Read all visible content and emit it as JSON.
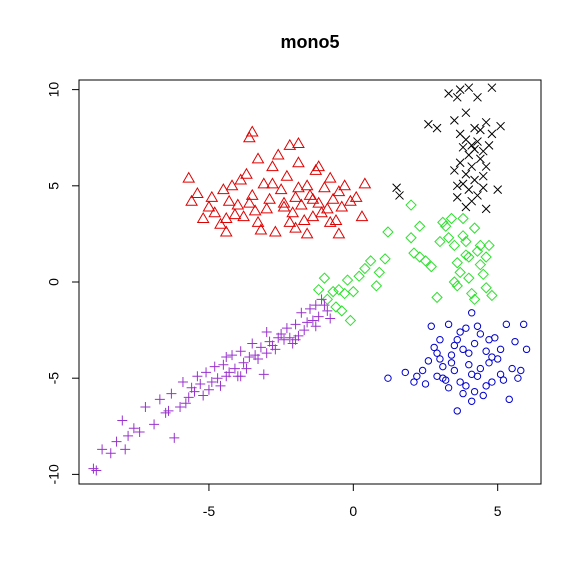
{
  "chart_data": {
    "type": "scatter",
    "title": "mono5",
    "xlabel": "",
    "ylabel": "",
    "xlim": [
      -9.5,
      6.5
    ],
    "ylim": [
      -10.5,
      10.5
    ],
    "xticks": [
      -5,
      0,
      5
    ],
    "xtick_labels": [
      "-5",
      "0",
      "5"
    ],
    "yticks": [
      -10,
      -5,
      0,
      5,
      10
    ],
    "ytick_labels": [
      "-10",
      "-5",
      "0",
      "5",
      "10"
    ],
    "grid": false,
    "legend": false,
    "series": [
      {
        "marker": "triangle",
        "color": "#DF0000",
        "points": [
          [
            -5.7,
            5.4
          ],
          [
            -5.6,
            4.2
          ],
          [
            -5.4,
            4.6
          ],
          [
            -5.0,
            3.9
          ],
          [
            -4.9,
            4.4
          ],
          [
            -4.8,
            3.6
          ],
          [
            -4.6,
            3.0
          ],
          [
            -4.5,
            4.8
          ],
          [
            -4.3,
            4.2
          ],
          [
            -4.2,
            5.0
          ],
          [
            -4.0,
            4.0
          ],
          [
            -3.8,
            3.4
          ],
          [
            -3.7,
            5.6
          ],
          [
            -3.6,
            4.1
          ],
          [
            -3.5,
            4.5
          ],
          [
            -3.3,
            3.1
          ],
          [
            -3.3,
            6.4
          ],
          [
            -3.1,
            5.1
          ],
          [
            -3.0,
            3.8
          ],
          [
            -2.9,
            4.3
          ],
          [
            -2.8,
            6.0
          ],
          [
            -2.7,
            2.6
          ],
          [
            -2.5,
            4.8
          ],
          [
            -2.4,
            3.9
          ],
          [
            -2.3,
            5.5
          ],
          [
            -2.2,
            7.1
          ],
          [
            -2.1,
            3.6
          ],
          [
            -2.0,
            4.4
          ],
          [
            -1.9,
            6.2
          ],
          [
            -1.8,
            4.0
          ],
          [
            -1.7,
            3.2
          ],
          [
            -1.6,
            5.0
          ],
          [
            -1.5,
            4.5
          ],
          [
            -1.4,
            3.4
          ],
          [
            -1.3,
            5.8
          ],
          [
            -1.2,
            4.1
          ],
          [
            -1.1,
            3.6
          ],
          [
            -1.0,
            4.9
          ],
          [
            -0.9,
            3.8
          ],
          [
            -0.8,
            5.4
          ],
          [
            -0.7,
            4.3
          ],
          [
            -0.6,
            3.2
          ],
          [
            -0.5,
            4.7
          ],
          [
            -0.4,
            3.9
          ],
          [
            -0.3,
            5.0
          ],
          [
            -0.1,
            4.2
          ],
          [
            0.1,
            4.4
          ],
          [
            0.3,
            3.4
          ],
          [
            0.4,
            5.1
          ],
          [
            -5.2,
            3.3
          ],
          [
            -4.4,
            2.6
          ],
          [
            -3.9,
            5.3
          ],
          [
            -3.4,
            3.7
          ],
          [
            -2.6,
            6.6
          ],
          [
            -2.0,
            2.8
          ],
          [
            -1.6,
            2.5
          ],
          [
            -1.2,
            6.0
          ],
          [
            -0.8,
            3.1
          ],
          [
            -4.1,
            3.5
          ],
          [
            -3.2,
            2.7
          ],
          [
            -2.4,
            4.1
          ],
          [
            -1.9,
            4.9
          ],
          [
            -1.4,
            4.3
          ],
          [
            -3.6,
            7.5
          ],
          [
            -3.5,
            7.8
          ],
          [
            -1.9,
            7.2
          ],
          [
            -4.4,
            3.3
          ],
          [
            -2.8,
            5.1
          ],
          [
            -2.2,
            3.1
          ],
          [
            -0.5,
            2.5
          ]
        ]
      },
      {
        "marker": "cross",
        "color": "#000000",
        "points": [
          [
            3.3,
            9.8
          ],
          [
            3.7,
            10.0
          ],
          [
            4.0,
            10.1
          ],
          [
            4.3,
            9.6
          ],
          [
            4.8,
            10.1
          ],
          [
            3.6,
            9.6
          ],
          [
            2.6,
            8.2
          ],
          [
            2.9,
            8.0
          ],
          [
            3.5,
            8.4
          ],
          [
            3.9,
            8.8
          ],
          [
            4.2,
            8.0
          ],
          [
            4.6,
            8.3
          ],
          [
            5.1,
            8.1
          ],
          [
            3.7,
            7.7
          ],
          [
            3.9,
            7.4
          ],
          [
            4.1,
            7.1
          ],
          [
            4.3,
            7.3
          ],
          [
            4.5,
            6.8
          ],
          [
            3.8,
            7.0
          ],
          [
            4.0,
            6.6
          ],
          [
            4.4,
            6.4
          ],
          [
            4.1,
            6.0
          ],
          [
            3.7,
            6.2
          ],
          [
            4.6,
            6.0
          ],
          [
            3.5,
            5.8
          ],
          [
            3.9,
            5.6
          ],
          [
            4.2,
            5.3
          ],
          [
            4.5,
            5.5
          ],
          [
            3.8,
            5.1
          ],
          [
            4.0,
            4.8
          ],
          [
            4.3,
            4.5
          ],
          [
            3.6,
            4.4
          ],
          [
            4.1,
            4.2
          ],
          [
            4.5,
            4.9
          ],
          [
            3.9,
            3.9
          ],
          [
            1.5,
            4.9
          ],
          [
            1.6,
            4.5
          ],
          [
            4.6,
            3.8
          ],
          [
            5.0,
            4.8
          ],
          [
            4.8,
            7.7
          ],
          [
            4.4,
            7.9
          ],
          [
            3.6,
            5.0
          ],
          [
            4.2,
            6.9
          ],
          [
            4.7,
            7.1
          ]
        ]
      },
      {
        "marker": "diamond",
        "color": "#30E030",
        "points": [
          [
            -1.2,
            -0.4
          ],
          [
            -1.0,
            0.2
          ],
          [
            -0.9,
            -0.9
          ],
          [
            -0.7,
            -0.5
          ],
          [
            -0.6,
            -1.3
          ],
          [
            -0.5,
            -0.4
          ],
          [
            -0.3,
            -0.6
          ],
          [
            -0.2,
            0.1
          ],
          [
            -0.1,
            -2.0
          ],
          [
            0.0,
            -0.5
          ],
          [
            0.2,
            0.3
          ],
          [
            0.4,
            0.7
          ],
          [
            0.6,
            1.1
          ],
          [
            0.8,
            -0.2
          ],
          [
            0.9,
            0.5
          ],
          [
            1.1,
            1.2
          ],
          [
            1.2,
            2.6
          ],
          [
            2.0,
            2.3
          ],
          [
            2.1,
            1.5
          ],
          [
            2.3,
            1.3
          ],
          [
            2.5,
            1.1
          ],
          [
            2.7,
            0.8
          ],
          [
            2.9,
            -0.8
          ],
          [
            3.0,
            2.1
          ],
          [
            3.2,
            2.9
          ],
          [
            3.4,
            3.3
          ],
          [
            3.5,
            1.9
          ],
          [
            3.6,
            1.0
          ],
          [
            3.7,
            0.5
          ],
          [
            3.8,
            2.4
          ],
          [
            3.9,
            1.4
          ],
          [
            4.0,
            0.2
          ],
          [
            4.1,
            -0.6
          ],
          [
            4.2,
            2.8
          ],
          [
            4.3,
            1.6
          ],
          [
            4.4,
            0.9
          ],
          [
            4.5,
            0.4
          ],
          [
            4.6,
            -0.3
          ],
          [
            4.7,
            1.9
          ],
          [
            4.8,
            -0.7
          ],
          [
            3.3,
            2.3
          ],
          [
            3.6,
            -0.2
          ],
          [
            4.0,
            1.3
          ],
          [
            4.4,
            1.9
          ],
          [
            3.1,
            3.1
          ],
          [
            2.0,
            4.0
          ],
          [
            2.3,
            2.9
          ],
          [
            3.9,
            2.1
          ],
          [
            4.2,
            -0.9
          ],
          [
            3.5,
            0.0
          ],
          [
            4.6,
            1.3
          ],
          [
            3.8,
            3.3
          ],
          [
            -0.4,
            -1.5
          ]
        ]
      },
      {
        "marker": "circle",
        "color": "#0000CC",
        "points": [
          [
            1.2,
            -5.0
          ],
          [
            1.8,
            -4.7
          ],
          [
            2.1,
            -5.2
          ],
          [
            2.4,
            -4.6
          ],
          [
            2.5,
            -5.3
          ],
          [
            2.6,
            -4.1
          ],
          [
            2.8,
            -3.4
          ],
          [
            2.9,
            -4.9
          ],
          [
            3.0,
            -3.0
          ],
          [
            3.1,
            -4.4
          ],
          [
            3.2,
            -5.1
          ],
          [
            3.3,
            -2.2
          ],
          [
            3.4,
            -3.8
          ],
          [
            3.5,
            -4.6
          ],
          [
            3.6,
            -6.7
          ],
          [
            3.7,
            -2.6
          ],
          [
            3.8,
            -3.5
          ],
          [
            3.9,
            -5.4
          ],
          [
            4.0,
            -4.3
          ],
          [
            4.1,
            -1.6
          ],
          [
            4.1,
            -6.2
          ],
          [
            4.2,
            -3.2
          ],
          [
            4.3,
            -4.9
          ],
          [
            4.4,
            -2.7
          ],
          [
            4.5,
            -5.9
          ],
          [
            4.6,
            -3.6
          ],
          [
            4.7,
            -4.2
          ],
          [
            4.8,
            -5.2
          ],
          [
            4.9,
            -2.9
          ],
          [
            5.0,
            -4.0
          ],
          [
            5.1,
            -3.5
          ],
          [
            5.2,
            -5.1
          ],
          [
            5.3,
            -2.2
          ],
          [
            5.4,
            -6.1
          ],
          [
            5.5,
            -4.5
          ],
          [
            5.6,
            -3.1
          ],
          [
            5.7,
            -5.0
          ],
          [
            5.8,
            -4.6
          ],
          [
            6.0,
            -3.5
          ],
          [
            5.9,
            -2.2
          ],
          [
            3.3,
            -5.5
          ],
          [
            3.6,
            -3.0
          ],
          [
            3.9,
            -2.4
          ],
          [
            4.2,
            -5.7
          ],
          [
            4.6,
            -5.4
          ],
          [
            2.7,
            -2.3
          ],
          [
            3.0,
            -4.0
          ],
          [
            3.4,
            -4.2
          ],
          [
            3.8,
            -5.8
          ],
          [
            4.0,
            -3.7
          ],
          [
            4.4,
            -4.5
          ],
          [
            4.7,
            -3.0
          ],
          [
            5.1,
            -4.8
          ],
          [
            3.1,
            -5.0
          ],
          [
            2.2,
            -4.9
          ],
          [
            2.9,
            -3.7
          ],
          [
            4.3,
            -2.3
          ],
          [
            4.8,
            -3.9
          ],
          [
            3.5,
            -3.3
          ],
          [
            3.7,
            -5.2
          ],
          [
            4.1,
            -4.8
          ]
        ]
      },
      {
        "marker": "plus",
        "color": "#9933CC",
        "points": [
          [
            -9.0,
            -9.7
          ],
          [
            -8.7,
            -8.7
          ],
          [
            -8.4,
            -8.9
          ],
          [
            -8.2,
            -8.3
          ],
          [
            -8.0,
            -7.2
          ],
          [
            -7.8,
            -8.0
          ],
          [
            -7.6,
            -7.6
          ],
          [
            -7.4,
            -7.8
          ],
          [
            -7.2,
            -6.5
          ],
          [
            -6.9,
            -7.4
          ],
          [
            -6.7,
            -6.1
          ],
          [
            -6.5,
            -6.8
          ],
          [
            -6.3,
            -5.8
          ],
          [
            -6.2,
            -8.1
          ],
          [
            -6.0,
            -6.5
          ],
          [
            -5.9,
            -5.2
          ],
          [
            -5.7,
            -6.0
          ],
          [
            -5.6,
            -5.5
          ],
          [
            -5.4,
            -4.9
          ],
          [
            -5.3,
            -5.3
          ],
          [
            -5.1,
            -4.7
          ],
          [
            -5.0,
            -5.6
          ],
          [
            -4.8,
            -4.4
          ],
          [
            -4.7,
            -5.0
          ],
          [
            -4.5,
            -4.3
          ],
          [
            -4.4,
            -4.9
          ],
          [
            -4.2,
            -3.8
          ],
          [
            -4.1,
            -4.5
          ],
          [
            -3.9,
            -3.6
          ],
          [
            -3.8,
            -4.2
          ],
          [
            -3.6,
            -3.9
          ],
          [
            -3.5,
            -3.2
          ],
          [
            -3.3,
            -4.0
          ],
          [
            -3.2,
            -3.4
          ],
          [
            -3.0,
            -2.6
          ],
          [
            -2.9,
            -3.1
          ],
          [
            -2.7,
            -3.5
          ],
          [
            -2.6,
            -2.9
          ],
          [
            -2.4,
            -3.0
          ],
          [
            -2.3,
            -2.4
          ],
          [
            -2.1,
            -3.2
          ],
          [
            -2.0,
            -2.2
          ],
          [
            -1.9,
            -2.8
          ],
          [
            -1.8,
            -1.6
          ],
          [
            -1.6,
            -2.1
          ],
          [
            -1.5,
            -1.4
          ],
          [
            -1.4,
            -2.0
          ],
          [
            -1.3,
            -1.2
          ],
          [
            -1.2,
            -1.8
          ],
          [
            -1.1,
            -0.9
          ],
          [
            -0.9,
            -1.5
          ],
          [
            -0.8,
            -1.9
          ],
          [
            -5.5,
            -5.7
          ],
          [
            -4.9,
            -5.2
          ],
          [
            -4.3,
            -4.7
          ],
          [
            -3.7,
            -4.5
          ],
          [
            -3.1,
            -4.8
          ],
          [
            -2.5,
            -2.7
          ],
          [
            -2.2,
            -2.9
          ],
          [
            -1.7,
            -2.5
          ],
          [
            -6.4,
            -6.7
          ],
          [
            -5.8,
            -6.3
          ],
          [
            -5.2,
            -5.9
          ],
          [
            -4.6,
            -5.4
          ],
          [
            -4.0,
            -4.9
          ],
          [
            -3.4,
            -3.8
          ],
          [
            -2.8,
            -3.3
          ],
          [
            -1.3,
            -2.3
          ],
          [
            -1.0,
            -1.2
          ],
          [
            -3.0,
            -3.7
          ],
          [
            -2.0,
            -3.0
          ],
          [
            -4.4,
            -3.9
          ],
          [
            -3.9,
            -4.9
          ],
          [
            -7.9,
            -8.7
          ],
          [
            -8.9,
            -9.8
          ]
        ]
      }
    ]
  }
}
